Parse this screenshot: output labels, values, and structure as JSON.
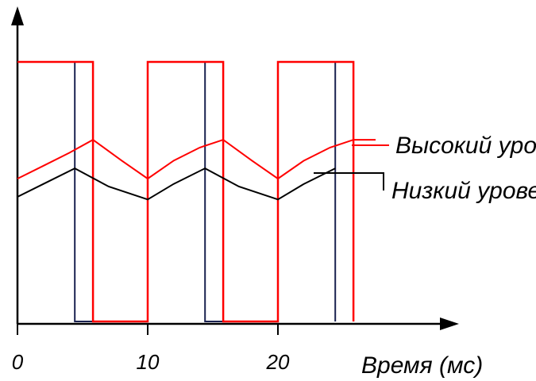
{
  "chart_data": {
    "type": "line",
    "title": "",
    "xlabel": "Время (мс)",
    "ylabel": "",
    "xlim": [
      -0.2,
      34
    ],
    "ylim": [
      0,
      1.05
    ],
    "x_ticks": [
      "0",
      "10",
      "20"
    ],
    "grid": false,
    "pulse_colors": {
      "low": "#1a2250",
      "high": "#ff0000"
    },
    "series": [
      {
        "name": "Высокий уровень",
        "color": "#ff0000",
        "pulse": {
          "points": [
            [
              0,
              1.0
            ],
            [
              5.8,
              1.0
            ],
            [
              5.8,
              0.0
            ],
            [
              10,
              0.0
            ],
            [
              10,
              1.0
            ],
            [
              15.8,
              1.0
            ],
            [
              15.8,
              0.0
            ],
            [
              20,
              0.0
            ],
            [
              20,
              1.0
            ],
            [
              25.8,
              1.0
            ],
            [
              25.8,
              0.0
            ]
          ]
        },
        "current": {
          "points": [
            [
              0,
              0.55
            ],
            [
              2,
              0.6
            ],
            [
              4,
              0.65
            ],
            [
              5.8,
              0.7
            ],
            [
              8,
              0.62
            ],
            [
              10,
              0.55
            ],
            [
              12,
              0.62
            ],
            [
              14,
              0.67
            ],
            [
              15.8,
              0.7
            ],
            [
              18,
              0.62
            ],
            [
              20,
              0.55
            ],
            [
              22,
              0.62
            ],
            [
              24,
              0.67
            ],
            [
              25.8,
              0.7
            ],
            [
              27.5,
              0.7
            ]
          ]
        }
      },
      {
        "name": "Низкий уровень",
        "color": "#000000",
        "pulse": {
          "points": [
            [
              0,
              1.0
            ],
            [
              4.4,
              1.0
            ],
            [
              4.4,
              0.0
            ],
            [
              10,
              0.0
            ],
            [
              10,
              1.0
            ],
            [
              14.4,
              1.0
            ],
            [
              14.4,
              0.0
            ],
            [
              20,
              0.0
            ],
            [
              20,
              1.0
            ],
            [
              24.4,
              1.0
            ],
            [
              24.4,
              0.0
            ]
          ]
        },
        "current": {
          "points": [
            [
              0,
              0.48
            ],
            [
              2,
              0.53
            ],
            [
              4.4,
              0.59
            ],
            [
              7,
              0.52
            ],
            [
              10,
              0.47
            ],
            [
              12,
              0.53
            ],
            [
              14.4,
              0.59
            ],
            [
              17,
              0.52
            ],
            [
              20,
              0.47
            ],
            [
              22,
              0.53
            ],
            [
              24.4,
              0.59
            ]
          ]
        }
      }
    ],
    "labels": [
      {
        "text": "Высокий уровень",
        "series": 0
      },
      {
        "text": "Низкий уровень",
        "series": 1
      }
    ]
  }
}
